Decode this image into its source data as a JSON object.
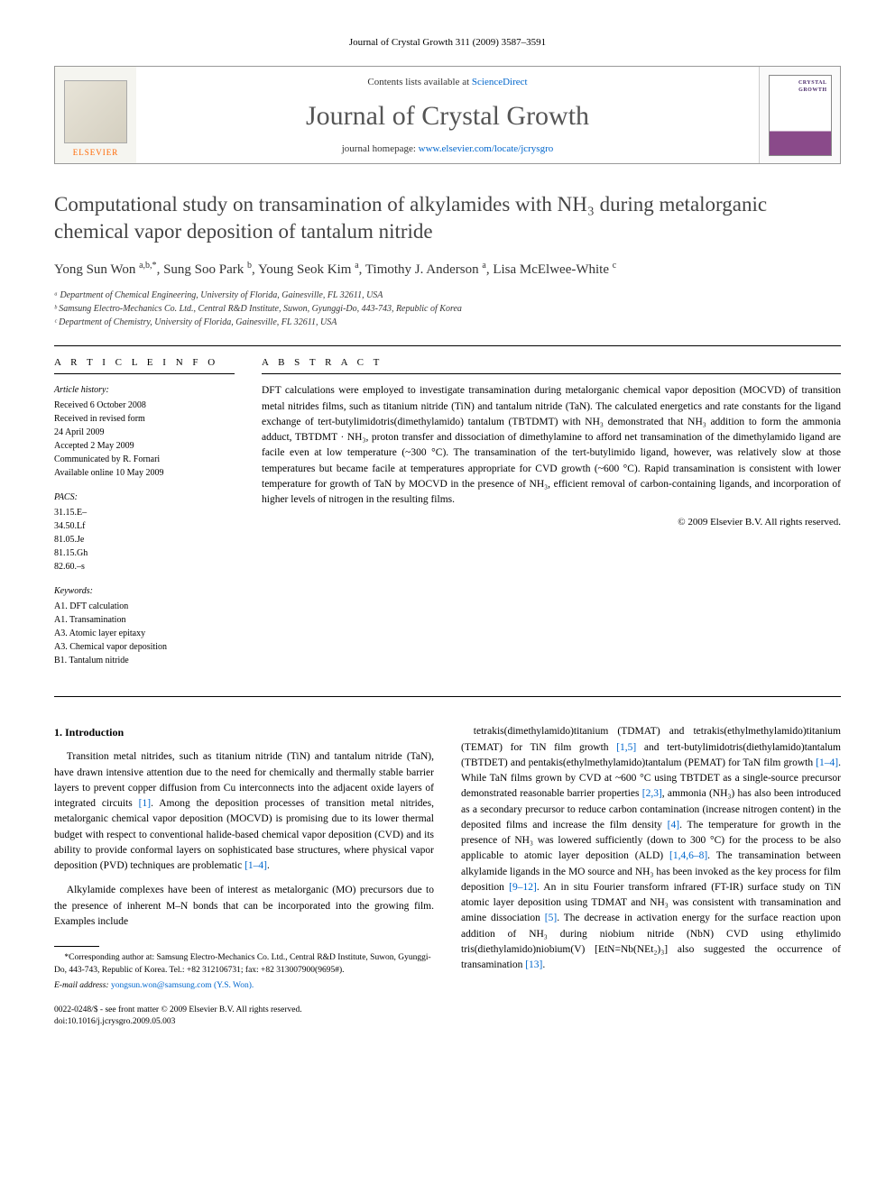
{
  "running_head": "Journal of Crystal Growth 311 (2009) 3587–3591",
  "masthead": {
    "contents_prefix": "Contents lists available at ",
    "contents_link": "ScienceDirect",
    "journal": "Journal of Crystal Growth",
    "homepage_prefix": "journal homepage: ",
    "homepage_url": "www.elsevier.com/locate/jcrysgro",
    "publisher": "ELSEVIER",
    "cover_label": "CRYSTAL GROWTH"
  },
  "title": "Computational study on transamination of alkylamides with NH₃ during metalorganic chemical vapor deposition of tantalum nitride",
  "authors_html": "Yong Sun Won <sup>a,b,*</sup>, Sung Soo Park <sup>b</sup>, Young Seok Kim <sup>a</sup>, Timothy J. Anderson <sup>a</sup>, Lisa McElwee-White <sup>c</sup>",
  "affiliations": [
    "ᵃ Department of Chemical Engineering, University of Florida, Gainesville, FL 32611, USA",
    "ᵇ Samsung Electro-Mechanics Co. Ltd., Central R&D Institute, Suwon, Gyunggi-Do, 443-743, Republic of Korea",
    "ᶜ Department of Chemistry, University of Florida, Gainesville, FL 32611, USA"
  ],
  "info": {
    "head": "A R T I C L E   I N F O",
    "history_title": "Article history:",
    "history": [
      "Received 6 October 2008",
      "Received in revised form",
      "24 April 2009",
      "Accepted 2 May 2009",
      "Communicated by R. Fornari",
      "Available online 10 May 2009"
    ],
    "pacs_title": "PACS:",
    "pacs": [
      "31.15.E–",
      "34.50.Lf",
      "81.05.Je",
      "81.15.Gh",
      "82.60.–s"
    ],
    "keywords_title": "Keywords:",
    "keywords": [
      "A1. DFT calculation",
      "A1. Transamination",
      "A3. Atomic layer epitaxy",
      "A3. Chemical vapor deposition",
      "B1. Tantalum nitride"
    ]
  },
  "abstract": {
    "head": "A B S T R A C T",
    "text": "DFT calculations were employed to investigate transamination during metalorganic chemical vapor deposition (MOCVD) of transition metal nitrides films, such as titanium nitride (TiN) and tantalum nitride (TaN). The calculated energetics and rate constants for the ligand exchange of tert-butylimidotris(dimethylamido) tantalum (TBTDMT) with NH₃ demonstrated that NH₃ addition to form the ammonia adduct, TBTDMT · NH₃, proton transfer and dissociation of dimethylamine to afford net transamination of the dimethylamido ligand are facile even at low temperature (~300 °C). The transamination of the tert-butylimido ligand, however, was relatively slow at those temperatures but became facile at temperatures appropriate for CVD growth (~600 °C). Rapid transamination is consistent with lower temperature for growth of TaN by MOCVD in the presence of NH₃, efficient removal of carbon-containing ligands, and incorporation of higher levels of nitrogen in the resulting films.",
    "copyright": "© 2009 Elsevier B.V. All rights reserved."
  },
  "body": {
    "section_head": "1. Introduction",
    "col1": [
      "Transition metal nitrides, such as titanium nitride (TiN) and tantalum nitride (TaN), have drawn intensive attention due to the need for chemically and thermally stable barrier layers to prevent copper diffusion from Cu interconnects into the adjacent oxide layers of integrated circuits [1]. Among the deposition processes of transition metal nitrides, metalorganic chemical vapor deposition (MOCVD) is promising due to its lower thermal budget with respect to conventional halide-based chemical vapor deposition (CVD) and its ability to provide conformal layers on sophisticated base structures, where physical vapor deposition (PVD) techniques are problematic [1–4].",
      "Alkylamide complexes have been of interest as metalorganic (MO) precursors due to the presence of inherent M–N bonds that can be incorporated into the growing film. Examples include"
    ],
    "col2": [
      "tetrakis(dimethylamido)titanium (TDMAT) and tetrakis(ethylmethylamido)titanium (TEMAT) for TiN film growth [1,5] and tert-butylimidotris(diethylamido)tantalum (TBTDET) and pentakis(ethylmethylamido)tantalum (PEMAT) for TaN film growth [1–4]. While TaN films grown by CVD at ~600 °C using TBTDET as a single-source precursor demonstrated reasonable barrier properties [2,3], ammonia (NH₃) has also been introduced as a secondary precursor to reduce carbon contamination (increase nitrogen content) in the deposited films and increase the film density [4]. The temperature for growth in the presence of NH₃ was lowered sufficiently (down to 300 °C) for the process to be also applicable to atomic layer deposition (ALD) [1,4,6–8]. The transamination between alkylamide ligands in the MO source and NH₃ has been invoked as the key process for film deposition [9–12]. An in situ Fourier transform infrared (FT-IR) surface study on TiN atomic layer deposition using TDMAT and NH₃ was consistent with transamination and amine dissociation [5]. The decrease in activation energy for the surface reaction upon addition of NH₃ during niobium nitride (NbN) CVD using ethylimido tris(diethylamido)niobium(V) [EtN=Nb(NEt₂)₃] also suggested the occurrence of transamination [13]."
    ]
  },
  "footnotes": {
    "corr": "*Corresponding author at: Samsung Electro-Mechanics Co. Ltd., Central R&D Institute, Suwon, Gyunggi-Do, 443-743, Republic of Korea. Tel.: +82 312106731; fax: +82 313007900(9695#).",
    "email_label": "E-mail address:",
    "email": "yongsun.won@samsung.com (Y.S. Won)."
  },
  "doi": {
    "line1": "0022-0248/$ - see front matter © 2009 Elsevier B.V. All rights reserved.",
    "line2": "doi:10.1016/j.jcrysgro.2009.05.003"
  },
  "colors": {
    "link": "#0066cc",
    "publisher": "#ff6600",
    "text": "#000000",
    "title_gray": "#444444",
    "journal_gray": "#555555"
  }
}
